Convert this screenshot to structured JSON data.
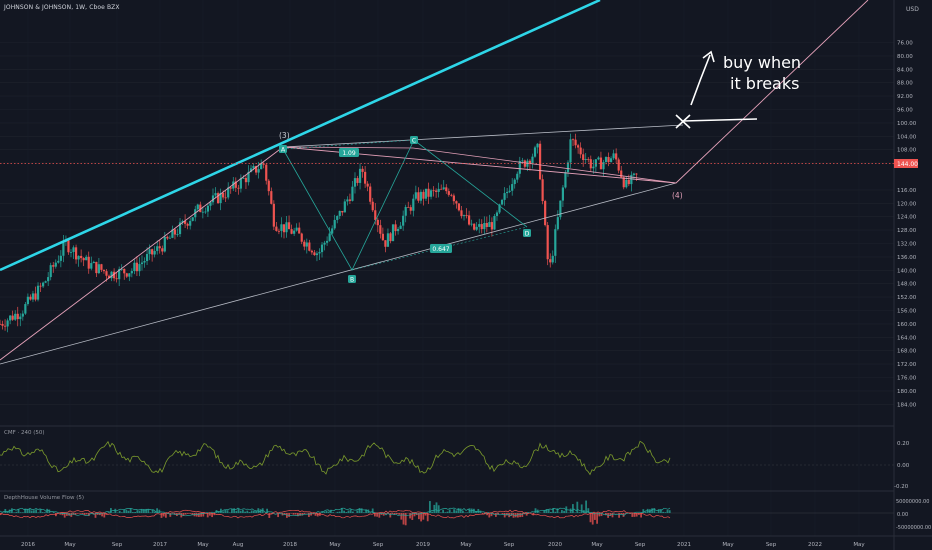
{
  "header": {
    "symbol": "JOHNSON & JOHNSON, 1W, Cboe BZX",
    "currency": "USD"
  },
  "colors": {
    "background": "#131722",
    "up_candle": "#26a69a",
    "down_candle": "#ef5350",
    "trendline_cyan": "#2ed6e8",
    "pattern_pink": "#e3a0b8",
    "channel_grey": "#b8bcc6",
    "last_price": "#ef5350",
    "cmf_line": "#7a9a2c"
  },
  "annotations": {
    "buy_text_line1": "buy when",
    "buy_text_line2": "it breaks",
    "wave3": "(3)",
    "wave4": "(4)",
    "point_A": "A",
    "point_B": "B",
    "point_C": "C",
    "point_D": "D",
    "ratio_1": "1.09",
    "ratio_2": "0.647"
  },
  "price_axis": {
    "labels": [
      "184.00",
      "180.00",
      "176.00",
      "172.00",
      "168.00",
      "164.00",
      "160.00",
      "156.00",
      "152.00",
      "148.00",
      "140.00",
      "136.00",
      "132.00",
      "128.00",
      "124.00",
      "120.00",
      "116.00",
      "112.00",
      "108.00",
      "104.00",
      "100.00",
      "96.00",
      "92.00",
      "88.00",
      "84.00",
      "80.00",
      "76.00"
    ],
    "last_price": "144.00"
  },
  "time_axis": {
    "labels": [
      "2016",
      "May",
      "Sep",
      "2017",
      "May",
      "Aug",
      "2018",
      "May",
      "Sep",
      "2019",
      "May",
      "Sep",
      "2020",
      "May",
      "Sep",
      "2021",
      "May",
      "Sep",
      "2022",
      "May"
    ]
  },
  "indicators": {
    "cmf": {
      "title": "CMF · 240 (50)",
      "labels": [
        "0.20",
        "0.00",
        "-0.20"
      ]
    },
    "volume_flow": {
      "title": "DepthHouse Volume Flow (5)",
      "labels": [
        "50000000.00",
        "0.00",
        "-50000000.00"
      ]
    }
  },
  "chart_data": {
    "type": "candlestick",
    "title": "JOHNSON & JOHNSON, 1W, Cboe BZX",
    "ylabel": "USD",
    "ylim": [
      74,
      186
    ],
    "y_ticks": [
      76,
      80,
      84,
      88,
      92,
      96,
      100,
      104,
      108,
      112,
      116,
      120,
      124,
      128,
      132,
      136,
      140,
      148,
      152,
      156,
      160,
      164,
      168,
      172,
      176,
      180,
      184
    ],
    "last_price": 144.0,
    "approx_close_path": [
      [
        "2016-01",
        100
      ],
      [
        "2016-03",
        104
      ],
      [
        "2016-05",
        112
      ],
      [
        "2016-07",
        124
      ],
      [
        "2016-09",
        118
      ],
      [
        "2016-11",
        115
      ],
      [
        "2017-01",
        116
      ],
      [
        "2017-04",
        124
      ],
      [
        "2017-07",
        134
      ],
      [
        "2017-10",
        140
      ],
      [
        "2018-01",
        148
      ],
      [
        "2018-02",
        130
      ],
      [
        "2018-04",
        127
      ],
      [
        "2018-06",
        121
      ],
      [
        "2018-08",
        133
      ],
      [
        "2018-10",
        146
      ],
      [
        "2018-12",
        124
      ],
      [
        "2019-03",
        138
      ],
      [
        "2019-06",
        140
      ],
      [
        "2019-08",
        128
      ],
      [
        "2019-10",
        130
      ],
      [
        "2019-12",
        146
      ],
      [
        "2020-02",
        152
      ],
      [
        "2020-03",
        115
      ],
      [
        "2020-05",
        155
      ],
      [
        "2020-07",
        147
      ],
      [
        "2020-09",
        150
      ],
      [
        "2020-10",
        141
      ],
      [
        "2020-11",
        144
      ]
    ]
  }
}
